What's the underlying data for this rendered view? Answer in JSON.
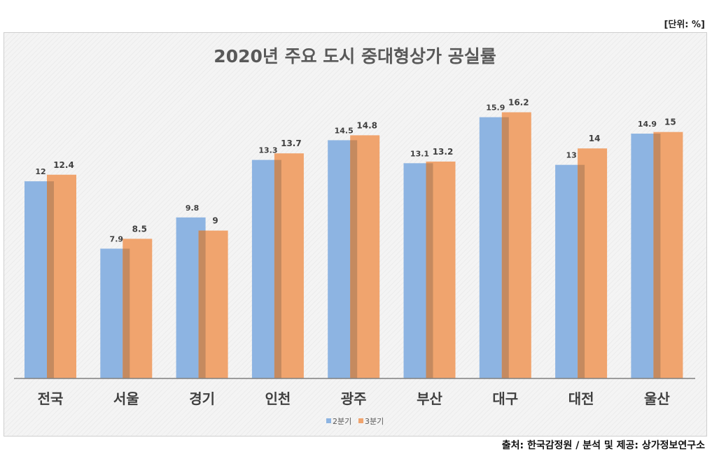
{
  "unit_label": "[단위: %]",
  "source": "출처: 한국감정원 / 분석 및 제공: 상가정보연구소",
  "chart_data": {
    "type": "bar",
    "title": "2020년 주요 도시 중대형상가 공실률",
    "categories": [
      "전국",
      "서울",
      "경기",
      "인천",
      "광주",
      "부산",
      "대구",
      "대전",
      "울산"
    ],
    "series": [
      {
        "name": "2분기",
        "color": "#8db4e2",
        "values": [
          12,
          7.9,
          9.8,
          13.3,
          14.5,
          13.1,
          15.9,
          13,
          14.9
        ],
        "labels": [
          "12",
          "7.9",
          "9.8",
          "13.3",
          "14.5",
          "13.1",
          "15.9",
          "13",
          "14.9"
        ]
      },
      {
        "name": "3분기",
        "color": "#f0a46e",
        "values": [
          12.4,
          8.5,
          9,
          13.7,
          14.8,
          13.2,
          16.2,
          14,
          15
        ],
        "labels": [
          "12.4",
          "8.5",
          "9",
          "13.7",
          "14.8",
          "13.2",
          "16.2",
          "14",
          "15"
        ]
      }
    ],
    "ylim": [
      0,
      18
    ],
    "grid": false,
    "legend": "bottom"
  }
}
